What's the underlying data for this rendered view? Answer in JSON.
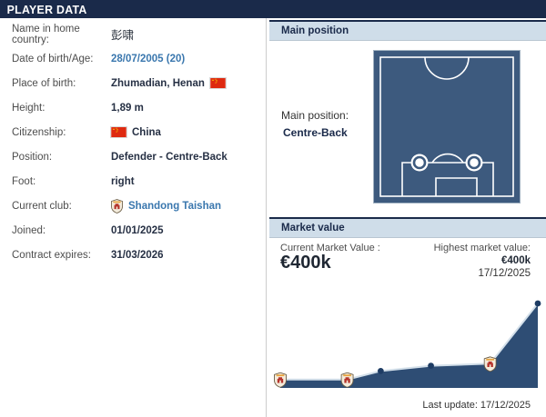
{
  "page": {
    "title": "PLAYER DATA"
  },
  "player_info": {
    "rows": [
      {
        "label": "Name in home country:",
        "value": "彭啸"
      },
      {
        "label": "Date of birth/Age:",
        "value": "28/07/2005 (20)"
      },
      {
        "label": "Place of birth:",
        "value": "Zhumadian, Henan"
      },
      {
        "label": "Height:",
        "value": "1,89 m"
      },
      {
        "label": "Citizenship:",
        "value": "China"
      },
      {
        "label": "Position:",
        "value": "Defender - Centre-Back"
      },
      {
        "label": "Foot:",
        "value": "right"
      },
      {
        "label": "Current club:",
        "value": "Shandong Taishan"
      },
      {
        "label": "Joined:",
        "value": "01/01/2025"
      },
      {
        "label": "Contract expires:",
        "value": "31/03/2026"
      }
    ]
  },
  "main_position": {
    "header": "Main position",
    "label": "Main position:",
    "value": "Centre-Back"
  },
  "market_value": {
    "header": "Market value",
    "current_label": "Current Market Value :",
    "current_value": "€400k",
    "highest_label": "Highest market value:",
    "highest_value": "€400k",
    "highest_date": "17/12/2025",
    "last_update": "Last update: 17/12/2025"
  },
  "chart_data": {
    "type": "area",
    "title": "Market value history (no axis labels shown; values estimated from pixels)",
    "ymax_eur_k": 400,
    "points": [
      {
        "x_frac": 0.0,
        "value_eur_k": 40,
        "marker": "club-badge"
      },
      {
        "x_frac": 0.26,
        "value_eur_k": 40,
        "marker": "club-badge"
      },
      {
        "x_frac": 0.39,
        "value_eur_k": 80,
        "marker": "dot"
      },
      {
        "x_frac": 0.585,
        "value_eur_k": 105,
        "marker": "dot"
      },
      {
        "x_frac": 0.815,
        "value_eur_k": 115,
        "marker": "club-badge"
      },
      {
        "x_frac": 1.0,
        "value_eur_k": 400,
        "marker": "dot"
      }
    ],
    "legend": "none",
    "grid": false,
    "last_update_label": "Last update: 17/12/2025"
  },
  "icons": {
    "china_flag": "china-flag-icon",
    "club_badge": "shandong-taishan-badge-icon"
  },
  "colors": {
    "navy": "#1a2a4a",
    "header_bg": "#cfdde9",
    "link_blue": "#3a77ae",
    "pitch_blue": "#3d5a7e",
    "chart_fill": "#2e4d74",
    "chart_line": "#d4e0ea",
    "chart_dot": "#1e3c64",
    "flag_red": "#de2910",
    "flag_yellow": "#ffde00"
  }
}
